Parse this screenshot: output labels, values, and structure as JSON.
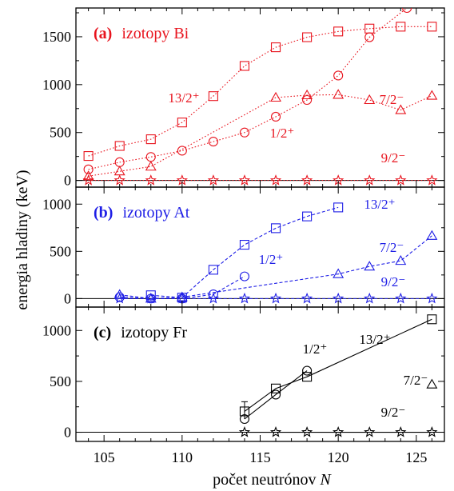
{
  "chart_data": {
    "type": "line",
    "x_label_text": "počet neutrónov ",
    "x_label_var": "N",
    "y_label": "energia hladiny (keV)",
    "x_range": [
      103.2,
      126.8
    ],
    "x_ticks": [
      105,
      110,
      115,
      120,
      125
    ],
    "panels": [
      {
        "letter": "(a)",
        "title": "izotopy Bi",
        "color": "#e8141e",
        "line_style": "dotted",
        "y_range": [
          -70,
          1800
        ],
        "y_ticks": [
          0,
          500,
          1000,
          1500
        ],
        "series": [
          {
            "label": "13/2⁺",
            "marker": "square",
            "points": [
              [
                104,
                255
              ],
              [
                106,
                360
              ],
              [
                108,
                430
              ],
              [
                110,
                605
              ],
              [
                112,
                880
              ],
              [
                114,
                1195
              ],
              [
                116,
                1390
              ],
              [
                118,
                1495
              ],
              [
                120,
                1555
              ],
              [
                122,
                1585
              ],
              [
                124,
                1605
              ],
              [
                126,
                1605
              ]
            ]
          },
          {
            "label": "1/2⁺",
            "marker": "circle",
            "points": [
              [
                104,
                115
              ],
              [
                106,
                190
              ],
              [
                108,
                245
              ],
              [
                110,
                310
              ],
              [
                112,
                405
              ],
              [
                114,
                500
              ],
              [
                116,
                665
              ],
              [
                118,
                840
              ],
              [
                120,
                1095
              ],
              [
                122,
                1495
              ],
              [
                124.4,
                1800
              ]
            ]
          },
          {
            "label": "7/2⁻",
            "marker": "triangle",
            "points": [
              [
                104,
                45
              ],
              [
                106,
                95
              ],
              [
                108,
                145
              ],
              [
                116,
                865
              ],
              [
                118,
                890
              ],
              [
                120,
                895
              ],
              [
                122,
                840
              ],
              [
                124,
                735
              ],
              [
                126,
                885
              ]
            ]
          },
          {
            "label": "9/2⁻",
            "marker": "star",
            "points": [
              [
                104,
                0
              ],
              [
                106,
                0
              ],
              [
                108,
                0
              ],
              [
                110,
                0
              ],
              [
                112,
                0
              ],
              [
                114,
                0
              ],
              [
                116,
                0
              ],
              [
                118,
                0
              ],
              [
                120,
                0
              ],
              [
                122,
                0
              ],
              [
                124,
                0
              ],
              [
                126,
                0
              ]
            ]
          }
        ]
      },
      {
        "letter": "(b)",
        "title": "izotopy At",
        "color": "#1e1ee6",
        "line_style": "dashed",
        "y_range": [
          -90,
          1180
        ],
        "y_ticks": [
          0,
          500,
          1000
        ],
        "series": [
          {
            "label": "13/2⁺",
            "marker": "square",
            "points": [
              [
                108,
                35
              ],
              [
                110,
                10
              ],
              [
                112,
                305
              ],
              [
                114,
                570
              ],
              [
                116,
                745
              ],
              [
                118,
                870
              ],
              [
                120,
                965
              ]
            ]
          },
          {
            "label": "1/2⁺",
            "marker": "circle",
            "points": [
              [
                106,
                15
              ],
              [
                108,
                0
              ],
              [
                110,
                0
              ],
              [
                112,
                45
              ],
              [
                114,
                235
              ]
            ]
          },
          {
            "label": "7/2⁻",
            "marker": "triangle",
            "points": [
              [
                106,
                40
              ],
              [
                108,
                0
              ],
              [
                110,
                15
              ],
              [
                120,
                260
              ],
              [
                122,
                340
              ],
              [
                124,
                400
              ],
              [
                126,
                665
              ]
            ]
          },
          {
            "label": "9/2⁻",
            "marker": "star",
            "points": [
              [
                106,
                0
              ],
              [
                108,
                0
              ],
              [
                110,
                0
              ],
              [
                112,
                0
              ],
              [
                114,
                0
              ],
              [
                116,
                0
              ],
              [
                118,
                0
              ],
              [
                120,
                0
              ],
              [
                122,
                0
              ],
              [
                124,
                0
              ],
              [
                126,
                0
              ]
            ]
          }
        ]
      },
      {
        "letter": "(c)",
        "title": "izotopy Fr",
        "color": "#000000",
        "line_style": "solid",
        "y_range": [
          -90,
          1230
        ],
        "y_ticks": [
          0,
          500,
          1000
        ],
        "series": [
          {
            "label": "13/2⁺",
            "marker": "square",
            "points": [
              [
                114,
                205
              ],
              [
                116,
                430
              ],
              [
                118,
                545
              ],
              [
                126,
                1110
              ]
            ]
          },
          {
            "label": "1/2⁺",
            "marker": "circle",
            "points": [
              [
                114,
                130
              ],
              [
                116,
                370
              ],
              [
                118,
                605
              ]
            ]
          },
          {
            "label": "7/2⁻",
            "marker": "triangle",
            "points": [
              [
                126,
                470
              ]
            ]
          },
          {
            "label": "9/2⁻",
            "marker": "star",
            "points": [
              [
                114,
                0
              ],
              [
                116,
                0
              ],
              [
                118,
                0
              ],
              [
                120,
                0
              ],
              [
                122,
                0
              ],
              [
                124,
                0
              ],
              [
                126,
                0
              ]
            ]
          }
        ]
      }
    ]
  }
}
